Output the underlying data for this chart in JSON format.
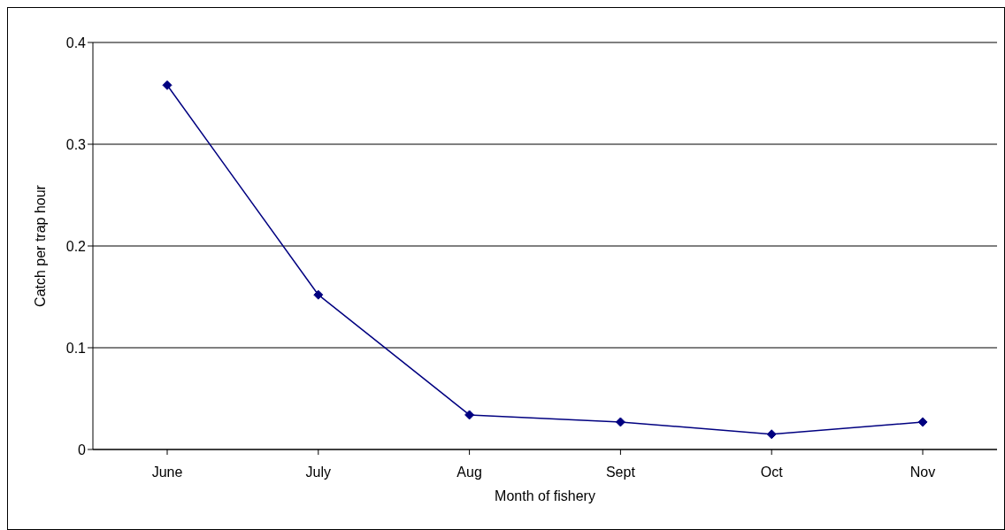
{
  "chart_data": {
    "type": "line",
    "xlabel": "Month of fishery",
    "ylabel": "Catch per trap hour",
    "categories": [
      "June",
      "July",
      "Aug",
      "Sept",
      "Oct",
      "Nov"
    ],
    "series": [
      {
        "color": "#000080",
        "values": [
          0.358,
          0.152,
          0.034,
          0.027,
          0.015,
          0.027
        ]
      }
    ],
    "ylim": [
      0,
      0.4
    ],
    "yticks": [
      0,
      0.1,
      0.2,
      0.3,
      0.4
    ],
    "grid": "y",
    "legend": false,
    "marker": "diamond",
    "line_style": "solid"
  }
}
